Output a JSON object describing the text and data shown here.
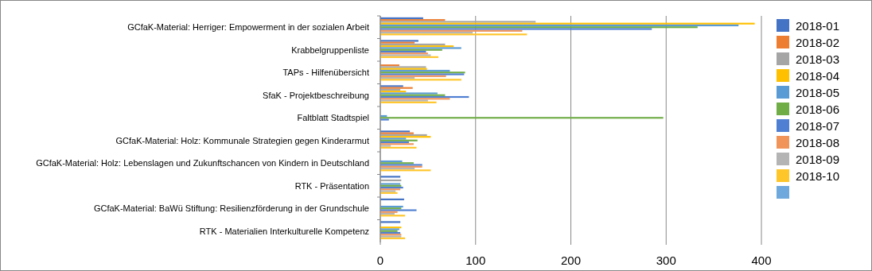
{
  "chart_data": {
    "type": "bar",
    "orientation": "horizontal",
    "categories": [
      "GCfaK-Material: Herriger: Empowerment in der sozialen Arbeit",
      "Krabbelgruppenliste",
      "TAPs - Hilfenübersicht",
      "SfaK - Projektbeschreibung",
      "Faltblatt Stadtspiel",
      "GCfaK-Material: Holz: Kommunale Strategien gegen Kinderarmut",
      "GCfaK-Material: Holz: Lebenslagen und Zukunftschancen von Kindern in Deutschland",
      "RTK - Präsentation",
      "GCfaK-Material: BaWü Stiftung: Resilienzförderung in der Grundschule",
      "RTK - Materialien Interkulturelle Kompetenz"
    ],
    "series": [
      {
        "name": "2018-01",
        "color": "#4472c4",
        "values": [
          45,
          40,
          0,
          24,
          0,
          31,
          0,
          21,
          25,
          21
        ]
      },
      {
        "name": "2018-02",
        "color": "#ed7d31",
        "values": [
          68,
          36,
          20,
          34,
          0,
          35,
          0,
          0,
          0,
          0
        ]
      },
      {
        "name": "2018-03",
        "color": "#a5a5a5",
        "values": [
          163,
          68,
          48,
          21,
          0,
          49,
          0,
          22,
          0,
          0
        ]
      },
      {
        "name": "2018-04",
        "color": "#ffc000",
        "values": [
          393,
          77,
          49,
          27,
          0,
          53,
          0,
          0,
          0,
          22
        ]
      },
      {
        "name": "2018-05",
        "color": "#5b9bd5",
        "values": [
          376,
          85,
          73,
          60,
          7,
          27,
          23,
          21,
          24,
          20
        ]
      },
      {
        "name": "2018-06",
        "color": "#70ad47",
        "values": [
          333,
          65,
          89,
          68,
          297,
          39,
          35,
          22,
          22,
          18
        ]
      },
      {
        "name": "2018-07",
        "color": "#4f7fd2",
        "values": [
          285,
          48,
          88,
          93,
          9,
          30,
          44,
          24,
          38,
          21
        ]
      },
      {
        "name": "2018-08",
        "color": "#f0945a",
        "values": [
          149,
          50,
          69,
          73,
          0,
          35,
          44,
          21,
          18,
          22
        ]
      },
      {
        "name": "2018-09",
        "color": "#b4b4b4",
        "values": [
          97,
          53,
          36,
          50,
          0,
          11,
          36,
          16,
          15,
          22
        ]
      },
      {
        "name": "2018-10",
        "color": "#ffc62a",
        "values": [
          154,
          61,
          85,
          59,
          0,
          38,
          53,
          18,
          26,
          26
        ]
      },
      {
        "color": "#6fa8dc",
        "values": [
          0,
          0,
          0,
          0,
          0,
          0,
          0,
          0,
          0,
          0
        ]
      }
    ],
    "xlim": [
      0,
      400
    ],
    "xticks": [
      0,
      100,
      200,
      300,
      400
    ],
    "grid": "x",
    "legend": "right"
  }
}
